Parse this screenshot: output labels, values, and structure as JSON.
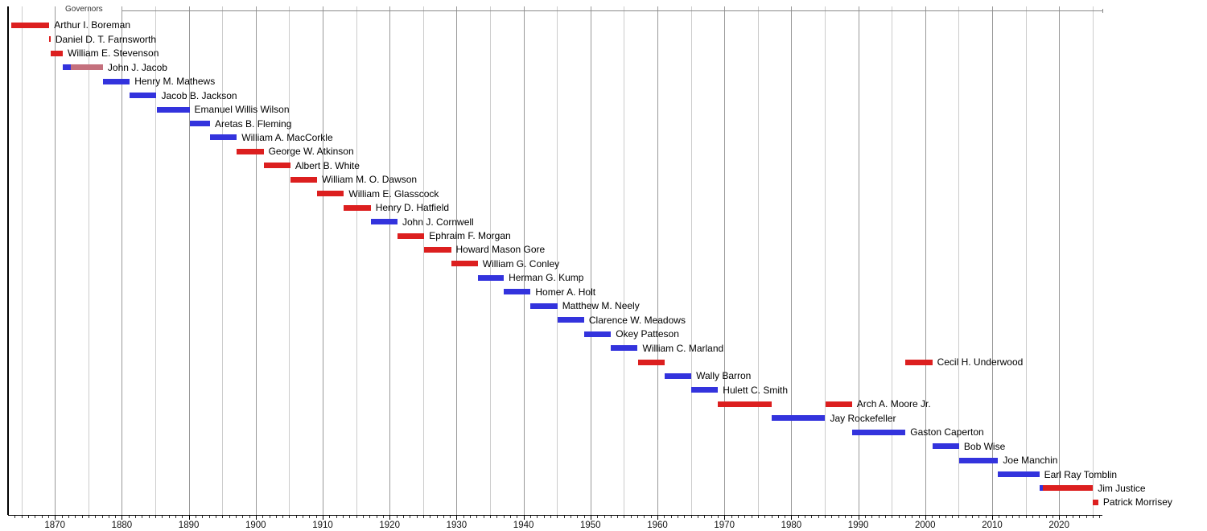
{
  "chart_data": {
    "type": "bar",
    "subtype": "horizontal-timeline-gantt",
    "title": "Governors",
    "grid": "on",
    "legend_position": "none",
    "x_axis": {
      "min": 1863.0,
      "max": 2026.4,
      "decade_labels": [
        "1870",
        "1880",
        "1890",
        "1900",
        "1910",
        "1920",
        "1930",
        "1940",
        "1950",
        "1960",
        "1970",
        "1980",
        "1990",
        "2000",
        "2010",
        "2020"
      ],
      "minor_tick_every_years": 1,
      "gridline_every_years": 5
    },
    "party_colors": {
      "Republican": "#dc1f1f",
      "Democratic": "#3333dd",
      "Independent": "#c4707d"
    },
    "axis_colors": {
      "axis_line": "#000000",
      "major_grid": "#999999",
      "minor_grid": "#cccccc",
      "minor_tick": "#333333",
      "major_tick": "#000000",
      "header_rule": "#8a8a8a"
    },
    "governors": [
      {
        "name": "Arthur I. Boreman",
        "terms": [
          {
            "start": 1863.47,
            "end": 1869.16,
            "party": "Republican"
          }
        ]
      },
      {
        "name": "Daniel D. T. Farnsworth",
        "terms": [
          {
            "start": 1869.16,
            "end": 1869.35,
            "party": "Republican"
          }
        ]
      },
      {
        "name": "William E. Stevenson",
        "terms": [
          {
            "start": 1869.35,
            "end": 1871.17,
            "party": "Republican"
          }
        ]
      },
      {
        "name": "John J. Jacob",
        "terms": [
          {
            "start": 1871.17,
            "end": 1872.4,
            "party": "Democratic"
          },
          {
            "start": 1872.4,
            "end": 1877.17,
            "party": "Independent"
          }
        ]
      },
      {
        "name": "Henry M. Mathews",
        "terms": [
          {
            "start": 1877.17,
            "end": 1881.17,
            "party": "Democratic"
          }
        ]
      },
      {
        "name": "Jacob B. Jackson",
        "terms": [
          {
            "start": 1881.17,
            "end": 1885.17,
            "party": "Democratic"
          }
        ]
      },
      {
        "name": "Emanuel Willis Wilson",
        "terms": [
          {
            "start": 1885.17,
            "end": 1890.1,
            "party": "Democratic"
          }
        ]
      },
      {
        "name": "Aretas B. Fleming",
        "terms": [
          {
            "start": 1890.1,
            "end": 1893.17,
            "party": "Democratic"
          }
        ]
      },
      {
        "name": "William A. MacCorkle",
        "terms": [
          {
            "start": 1893.17,
            "end": 1897.17,
            "party": "Democratic"
          }
        ]
      },
      {
        "name": "George W. Atkinson",
        "terms": [
          {
            "start": 1897.17,
            "end": 1901.17,
            "party": "Republican"
          }
        ]
      },
      {
        "name": "Albert B. White",
        "terms": [
          {
            "start": 1901.17,
            "end": 1905.17,
            "party": "Republican"
          }
        ]
      },
      {
        "name": "William M. O. Dawson",
        "terms": [
          {
            "start": 1905.17,
            "end": 1909.17,
            "party": "Republican"
          }
        ]
      },
      {
        "name": "William E. Glasscock",
        "terms": [
          {
            "start": 1909.17,
            "end": 1913.17,
            "party": "Republican"
          }
        ]
      },
      {
        "name": "Henry D. Hatfield",
        "terms": [
          {
            "start": 1913.17,
            "end": 1917.17,
            "party": "Republican"
          }
        ]
      },
      {
        "name": "John J. Cornwell",
        "terms": [
          {
            "start": 1917.17,
            "end": 1921.17,
            "party": "Democratic"
          }
        ]
      },
      {
        "name": "Ephraim F. Morgan",
        "terms": [
          {
            "start": 1921.17,
            "end": 1925.17,
            "party": "Republican"
          }
        ]
      },
      {
        "name": "Howard Mason Gore",
        "terms": [
          {
            "start": 1925.17,
            "end": 1929.17,
            "party": "Republican"
          }
        ]
      },
      {
        "name": "William G. Conley",
        "terms": [
          {
            "start": 1929.17,
            "end": 1933.17,
            "party": "Republican"
          }
        ]
      },
      {
        "name": "Herman G. Kump",
        "terms": [
          {
            "start": 1933.17,
            "end": 1937.05,
            "party": "Democratic"
          }
        ]
      },
      {
        "name": "Homer A. Holt",
        "terms": [
          {
            "start": 1937.05,
            "end": 1941.05,
            "party": "Democratic"
          }
        ]
      },
      {
        "name": "Matthew M. Neely",
        "terms": [
          {
            "start": 1941.05,
            "end": 1945.05,
            "party": "Democratic"
          }
        ]
      },
      {
        "name": "Clarence W. Meadows",
        "terms": [
          {
            "start": 1945.05,
            "end": 1949.05,
            "party": "Democratic"
          }
        ]
      },
      {
        "name": "Okey Patteson",
        "terms": [
          {
            "start": 1949.05,
            "end": 1953.05,
            "party": "Democratic"
          }
        ]
      },
      {
        "name": "William C. Marland",
        "terms": [
          {
            "start": 1953.05,
            "end": 1957.05,
            "party": "Democratic"
          }
        ]
      },
      {
        "name": "Cecil H. Underwood",
        "terms": [
          {
            "start": 1957.05,
            "end": 1961.05,
            "party": "Republican"
          },
          {
            "start": 1997.05,
            "end": 2001.05,
            "party": "Republican"
          }
        ]
      },
      {
        "name": "Wally Barron",
        "terms": [
          {
            "start": 1961.05,
            "end": 1965.05,
            "party": "Democratic"
          }
        ]
      },
      {
        "name": "Hulett C. Smith",
        "terms": [
          {
            "start": 1965.05,
            "end": 1969.05,
            "party": "Democratic"
          }
        ]
      },
      {
        "name": "Arch A. Moore Jr.",
        "terms": [
          {
            "start": 1969.05,
            "end": 1977.05,
            "party": "Republican"
          },
          {
            "start": 1985.05,
            "end": 1989.05,
            "party": "Republican"
          }
        ]
      },
      {
        "name": "Jay Rockefeller",
        "terms": [
          {
            "start": 1977.05,
            "end": 1985.05,
            "party": "Democratic"
          }
        ]
      },
      {
        "name": "Gaston Caperton",
        "terms": [
          {
            "start": 1989.05,
            "end": 1997.05,
            "party": "Democratic"
          }
        ]
      },
      {
        "name": "Bob Wise",
        "terms": [
          {
            "start": 2001.05,
            "end": 2005.05,
            "party": "Democratic"
          }
        ]
      },
      {
        "name": "Joe Manchin",
        "terms": [
          {
            "start": 2005.05,
            "end": 2010.88,
            "party": "Democratic"
          }
        ]
      },
      {
        "name": "Earl Ray Tomblin",
        "terms": [
          {
            "start": 2010.88,
            "end": 2017.04,
            "party": "Democratic"
          }
        ]
      },
      {
        "name": "Jim Justice",
        "terms": [
          {
            "start": 2017.04,
            "end": 2017.6,
            "party": "Democratic"
          },
          {
            "start": 2017.6,
            "end": 2025.04,
            "party": "Republican"
          }
        ]
      },
      {
        "name": "Patrick Morrisey",
        "terms": [
          {
            "start": 2025.04,
            "end": 2025.85,
            "party": "Republican"
          }
        ]
      }
    ]
  }
}
